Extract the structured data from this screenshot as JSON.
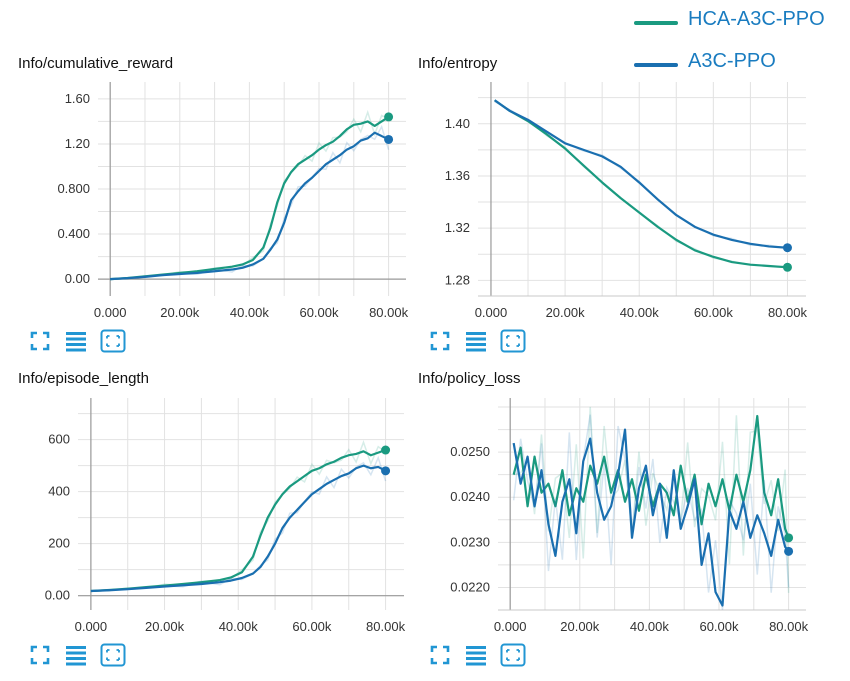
{
  "legend": {
    "items": [
      {
        "label": "HCA-A3C-PPO",
        "color": "#1a9a80"
      },
      {
        "label": "A3C-PPO",
        "color": "#1a6fb0"
      }
    ]
  },
  "toolbar": {
    "icons": [
      "fit-domain-icon",
      "toggle-lines-icon",
      "expand-icon"
    ],
    "color": "#2196d3"
  },
  "chart_data": [
    {
      "type": "line",
      "title": "Info/cumulative_reward",
      "xlim": [
        -3500,
        85000
      ],
      "ylim": [
        -0.15,
        1.75
      ],
      "x_ticks": [
        0,
        20000,
        40000,
        60000,
        80000
      ],
      "x_tick_labels": [
        "0.000",
        "20.00k",
        "40.00k",
        "60.00k",
        "80.00k"
      ],
      "y_ticks": [
        0.0,
        0.4,
        0.8,
        1.2,
        1.6
      ],
      "y_tick_labels": [
        "0.00",
        "0.400",
        "0.800",
        "1.20",
        "1.60"
      ],
      "series": [
        {
          "name": "HCA-A3C-PPO",
          "color": "#1a9a80",
          "x": [
            0,
            5000,
            10000,
            15000,
            20000,
            25000,
            30000,
            35000,
            38000,
            41000,
            44000,
            46000,
            48000,
            50000,
            52000,
            54000,
            56000,
            58000,
            60000,
            62000,
            64000,
            66000,
            68000,
            70000,
            72000,
            74000,
            76000,
            78000,
            80000
          ],
          "y": [
            0,
            0.01,
            0.025,
            0.04,
            0.055,
            0.07,
            0.09,
            0.11,
            0.13,
            0.17,
            0.28,
            0.45,
            0.68,
            0.85,
            0.95,
            1.02,
            1.06,
            1.1,
            1.15,
            1.19,
            1.22,
            1.27,
            1.33,
            1.37,
            1.38,
            1.4,
            1.36,
            1.4,
            1.44
          ]
        },
        {
          "name": "A3C-PPO",
          "color": "#1a6fb0",
          "x": [
            0,
            5000,
            10000,
            15000,
            20000,
            25000,
            30000,
            35000,
            38000,
            41000,
            44000,
            46000,
            48000,
            50000,
            52000,
            54000,
            56000,
            58000,
            60000,
            62000,
            64000,
            66000,
            68000,
            70000,
            72000,
            74000,
            76000,
            78000,
            80000
          ],
          "y": [
            0,
            0.008,
            0.02,
            0.035,
            0.045,
            0.055,
            0.07,
            0.085,
            0.1,
            0.13,
            0.18,
            0.26,
            0.35,
            0.5,
            0.7,
            0.78,
            0.85,
            0.9,
            0.96,
            1.02,
            1.06,
            1.1,
            1.15,
            1.18,
            1.23,
            1.25,
            1.3,
            1.27,
            1.24
          ]
        }
      ]
    },
    {
      "type": "line",
      "title": "Info/entropy",
      "xlim": [
        -3500,
        85000
      ],
      "ylim": [
        1.268,
        1.432
      ],
      "x_ticks": [
        0,
        20000,
        40000,
        60000,
        80000
      ],
      "x_tick_labels": [
        "0.000",
        "20.00k",
        "40.00k",
        "60.00k",
        "80.00k"
      ],
      "y_ticks": [
        1.28,
        1.32,
        1.36,
        1.4
      ],
      "y_tick_labels": [
        "1.28",
        "1.32",
        "1.36",
        "1.40"
      ],
      "series": [
        {
          "name": "HCA-A3C-PPO",
          "color": "#1a9a80",
          "x": [
            1000,
            5000,
            10000,
            15000,
            20000,
            25000,
            30000,
            35000,
            40000,
            45000,
            50000,
            55000,
            60000,
            65000,
            70000,
            75000,
            80000
          ],
          "y": [
            1.418,
            1.41,
            1.402,
            1.392,
            1.381,
            1.368,
            1.355,
            1.343,
            1.332,
            1.321,
            1.311,
            1.303,
            1.298,
            1.294,
            1.292,
            1.291,
            1.29
          ]
        },
        {
          "name": "A3C-PPO",
          "color": "#1a6fb0",
          "x": [
            1000,
            5000,
            10000,
            15000,
            20000,
            25000,
            30000,
            35000,
            40000,
            45000,
            50000,
            55000,
            60000,
            65000,
            70000,
            75000,
            80000
          ],
          "y": [
            1.418,
            1.41,
            1.403,
            1.394,
            1.385,
            1.38,
            1.375,
            1.367,
            1.355,
            1.342,
            1.33,
            1.321,
            1.315,
            1.311,
            1.308,
            1.306,
            1.305
          ]
        }
      ]
    },
    {
      "type": "line",
      "title": "Info/episode_length",
      "xlim": [
        -3500,
        85000
      ],
      "ylim": [
        -55,
        760
      ],
      "x_ticks": [
        0,
        20000,
        40000,
        60000,
        80000
      ],
      "x_tick_labels": [
        "0.000",
        "20.00k",
        "40.00k",
        "60.00k",
        "80.00k"
      ],
      "y_ticks": [
        0,
        200,
        400,
        600
      ],
      "y_tick_labels": [
        "0.00",
        "200",
        "400",
        "600"
      ],
      "series": [
        {
          "name": "HCA-A3C-PPO",
          "color": "#1a9a80",
          "x": [
            0,
            5000,
            10000,
            15000,
            20000,
            25000,
            30000,
            35000,
            38000,
            41000,
            44000,
            46000,
            48000,
            50000,
            52000,
            54000,
            56000,
            58000,
            60000,
            62000,
            64000,
            66000,
            68000,
            70000,
            72000,
            74000,
            76000,
            78000,
            80000
          ],
          "y": [
            18,
            22,
            27,
            33,
            39,
            45,
            52,
            60,
            70,
            90,
            150,
            230,
            300,
            350,
            390,
            420,
            440,
            460,
            480,
            490,
            505,
            515,
            530,
            540,
            545,
            555,
            540,
            550,
            560
          ]
        },
        {
          "name": "A3C-PPO",
          "color": "#1a6fb0",
          "x": [
            0,
            5000,
            10000,
            15000,
            20000,
            25000,
            30000,
            35000,
            38000,
            41000,
            44000,
            46000,
            48000,
            50000,
            52000,
            54000,
            56000,
            58000,
            60000,
            62000,
            64000,
            66000,
            68000,
            70000,
            72000,
            74000,
            76000,
            78000,
            80000
          ],
          "y": [
            18,
            21,
            25,
            30,
            35,
            40,
            45,
            52,
            58,
            68,
            85,
            110,
            150,
            200,
            260,
            300,
            330,
            360,
            390,
            410,
            430,
            445,
            460,
            470,
            490,
            500,
            490,
            495,
            480
          ]
        }
      ]
    },
    {
      "type": "line",
      "title": "Info/policy_loss",
      "xlim": [
        -3500,
        85000
      ],
      "ylim": [
        0.0215,
        0.0262
      ],
      "x_ticks": [
        0,
        20000,
        40000,
        60000,
        80000
      ],
      "x_tick_labels": [
        "0.000",
        "20.00k",
        "40.00k",
        "60.00k",
        "80.00k"
      ],
      "y_ticks": [
        0.022,
        0.023,
        0.024,
        0.025
      ],
      "y_tick_labels": [
        "0.0220",
        "0.0230",
        "0.0240",
        "0.0250"
      ],
      "series": [
        {
          "name": "HCA-A3C-PPO",
          "color": "#1a9a80",
          "x": [
            1000,
            3000,
            5000,
            7000,
            9000,
            11000,
            13000,
            15000,
            17000,
            19000,
            21000,
            23000,
            25000,
            27000,
            29000,
            31000,
            33000,
            35000,
            37000,
            39000,
            41000,
            43000,
            45000,
            47000,
            49000,
            51000,
            53000,
            55000,
            57000,
            59000,
            61000,
            63000,
            65000,
            67000,
            69000,
            71000,
            73000,
            75000,
            77000,
            79000,
            80000
          ],
          "y": [
            0.0245,
            0.0251,
            0.0238,
            0.0249,
            0.0241,
            0.0243,
            0.0238,
            0.0246,
            0.0236,
            0.0242,
            0.0239,
            0.0247,
            0.0243,
            0.0249,
            0.0241,
            0.0246,
            0.0239,
            0.0244,
            0.0237,
            0.0245,
            0.0238,
            0.0243,
            0.0241,
            0.0236,
            0.0247,
            0.0239,
            0.0245,
            0.0234,
            0.0243,
            0.0238,
            0.0244,
            0.0237,
            0.0245,
            0.0239,
            0.0246,
            0.0258,
            0.0241,
            0.0236,
            0.0244,
            0.0233,
            0.0231
          ]
        },
        {
          "name": "A3C-PPO",
          "color": "#1a6fb0",
          "x": [
            1000,
            3000,
            5000,
            7000,
            9000,
            11000,
            13000,
            15000,
            17000,
            19000,
            21000,
            23000,
            25000,
            27000,
            29000,
            31000,
            33000,
            35000,
            37000,
            39000,
            41000,
            43000,
            45000,
            47000,
            49000,
            51000,
            53000,
            55000,
            57000,
            59000,
            61000,
            63000,
            65000,
            67000,
            69000,
            71000,
            73000,
            75000,
            77000,
            79000,
            80000
          ],
          "y": [
            0.0252,
            0.0243,
            0.0249,
            0.0238,
            0.0246,
            0.0234,
            0.0227,
            0.0239,
            0.0244,
            0.0232,
            0.0248,
            0.0253,
            0.0241,
            0.0235,
            0.0238,
            0.0245,
            0.0255,
            0.0231,
            0.0242,
            0.0247,
            0.0236,
            0.0243,
            0.0231,
            0.0246,
            0.0233,
            0.0238,
            0.0244,
            0.0225,
            0.0232,
            0.0219,
            0.0216,
            0.0237,
            0.0233,
            0.0239,
            0.0231,
            0.0236,
            0.0232,
            0.0227,
            0.0235,
            0.0229,
            0.0228
          ]
        }
      ]
    }
  ]
}
